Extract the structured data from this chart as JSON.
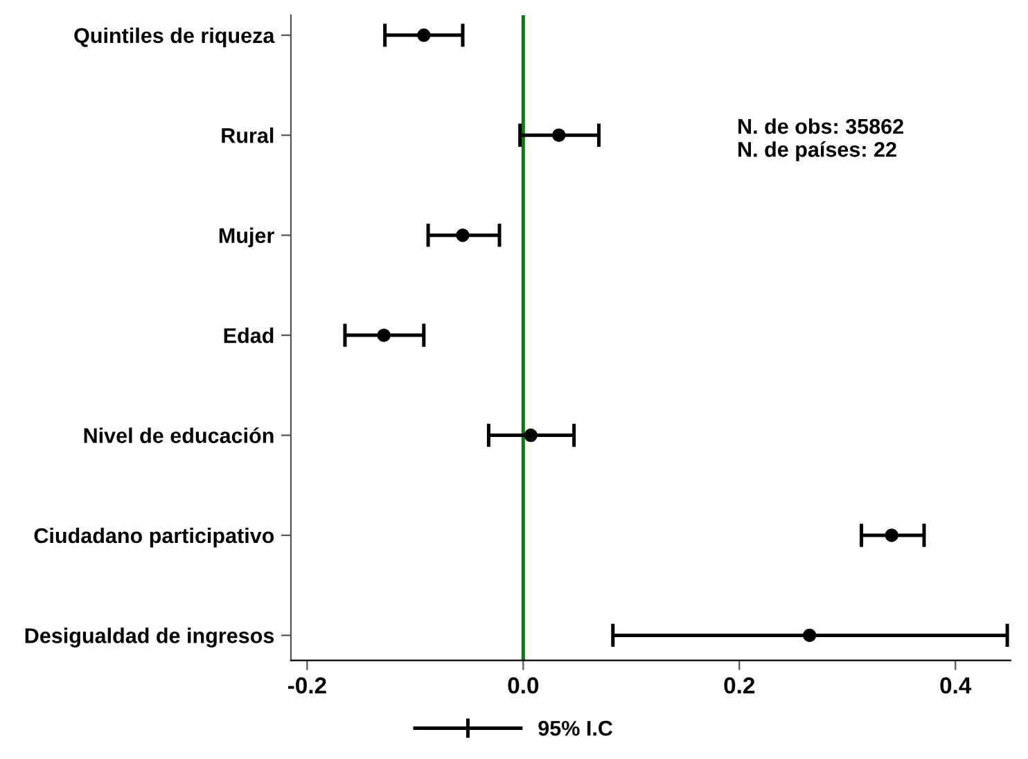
{
  "chart_data": {
    "type": "scatter",
    "orientation": "horizontal",
    "categories": [
      "Quintiles de riqueza",
      "Rural",
      "Mujer",
      "Edad",
      "Nivel de educación",
      "Ciudadano participativo",
      "Desigualdad de ingresos"
    ],
    "series": [
      {
        "name": "95% I.C",
        "color": "#000000",
        "values": [
          -0.092,
          0.033,
          -0.056,
          -0.129,
          0.007,
          0.341,
          0.265
        ],
        "errors": [
          [
            -0.128,
            -0.056
          ],
          [
            -0.003,
            0.07
          ],
          [
            -0.088,
            -0.022
          ],
          [
            -0.165,
            -0.092
          ],
          [
            -0.032,
            0.047
          ],
          [
            0.313,
            0.371
          ],
          [
            0.083,
            0.448
          ]
        ]
      }
    ],
    "xlim": [
      -0.215,
      0.451
    ],
    "xticks": [
      {
        "value": -0.2,
        "label": "-0.2"
      },
      {
        "value": 0.0,
        "label": "0.0"
      },
      0.2,
      0.4
    ],
    "ref_lines": [
      {
        "axis": "x",
        "value": 0,
        "label": null,
        "color": "#008000",
        "line_style": "solid"
      }
    ],
    "annotations": [
      "N. de obs: 35862\nN. de países: 22"
    ],
    "marker": "circle",
    "grid": false,
    "legend": "bottom"
  }
}
